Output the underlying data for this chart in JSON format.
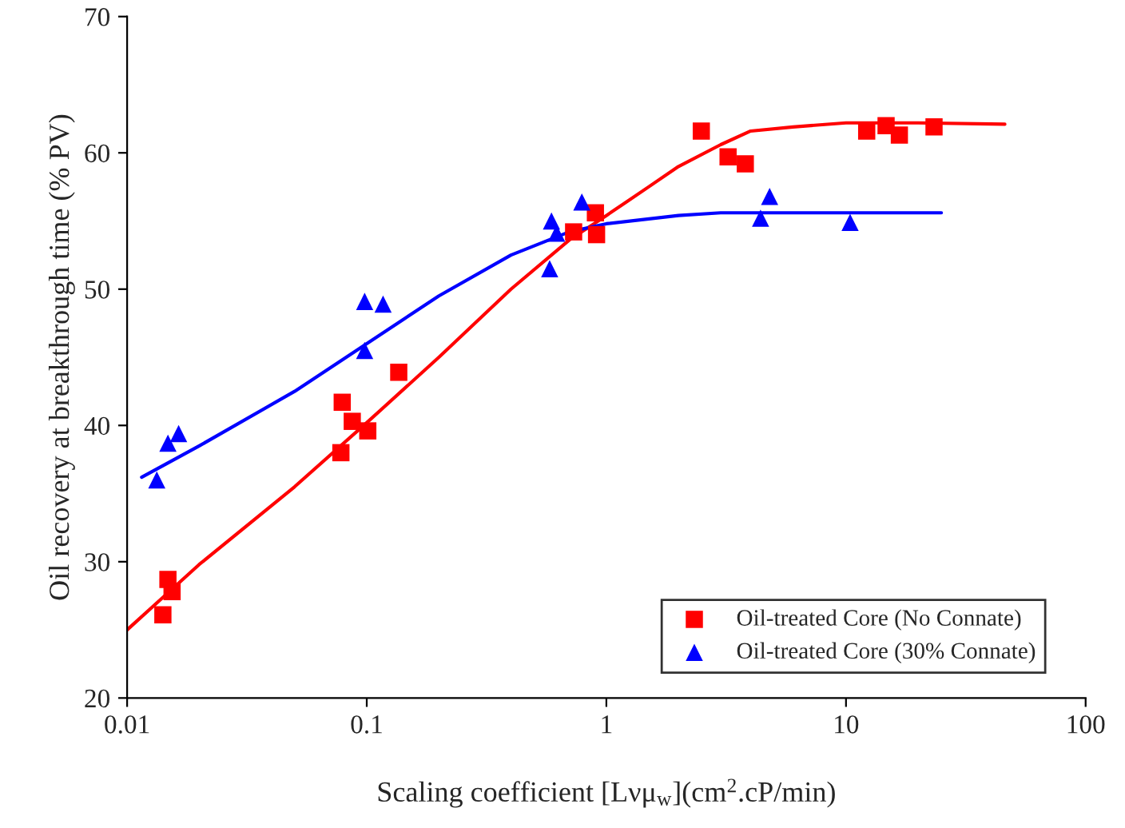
{
  "chart_data": {
    "type": "scatter",
    "xlabel": "Scaling coefficient [Lνμ$_{w}$](cm$^{2}$.cP/min)",
    "ylabel": "Oil recovery at breakthrough time (% PV)",
    "log": "x",
    "xlim": [
      0.01,
      100
    ],
    "xticks": [
      0.01,
      0.1,
      1,
      10,
      100
    ],
    "ylim": [
      20,
      70
    ],
    "yticks": [
      20,
      30,
      40,
      50,
      60,
      70
    ],
    "grid": false,
    "legend": "bottom right",
    "series": [
      {
        "name": "Oil-treated Core (No Connate)",
        "color": "#ff0000",
        "marker": "square",
        "x": [
          0.0141,
          0.0148,
          0.0154,
          0.078,
          0.079,
          0.087,
          0.101,
          0.136,
          0.73,
          0.9,
          0.91,
          2.49,
          3.22,
          3.8,
          12.2,
          14.7,
          16.7,
          23.3
        ],
        "values": [
          26.1,
          28.7,
          27.8,
          38.0,
          41.7,
          40.3,
          39.6,
          43.9,
          54.2,
          55.6,
          54.0,
          61.6,
          59.7,
          59.2,
          61.6,
          62.0,
          61.3,
          61.9
        ]
      },
      {
        "name": "Oil-treated Core (30% Connate)",
        "color": "#0000ff",
        "marker": "triangle",
        "x": [
          0.0133,
          0.0148,
          0.0164,
          0.098,
          0.117,
          0.098,
          0.59,
          0.62,
          0.58,
          0.79,
          4.4,
          4.8,
          10.4
        ],
        "values": [
          36.0,
          38.7,
          39.4,
          49.1,
          48.9,
          45.5,
          55.0,
          54.1,
          51.5,
          56.4,
          55.2,
          56.8,
          54.9
        ]
      },
      {
        "color": "#ff0000",
        "type": "line",
        "line_style": "solid",
        "x": [
          0.01,
          0.02,
          0.05,
          0.1,
          0.2,
          0.4,
          0.7,
          1,
          1.5,
          2,
          3,
          4,
          6,
          10,
          20,
          46
        ],
        "values": [
          25.0,
          29.8,
          35.5,
          40.2,
          45.0,
          50.0,
          53.6,
          55.4,
          57.5,
          59.0,
          60.6,
          61.6,
          61.9,
          62.2,
          62.2,
          62.1
        ]
      },
      {
        "color": "#0000ff",
        "type": "line",
        "line_style": "solid",
        "x": [
          0.0115,
          0.02,
          0.05,
          0.1,
          0.2,
          0.4,
          0.7,
          1,
          2,
          3,
          5,
          10,
          25
        ],
        "values": [
          36.2,
          38.5,
          42.5,
          46.0,
          49.5,
          52.5,
          54.2,
          54.8,
          55.4,
          55.6,
          55.6,
          55.6,
          55.6
        ]
      }
    ]
  }
}
